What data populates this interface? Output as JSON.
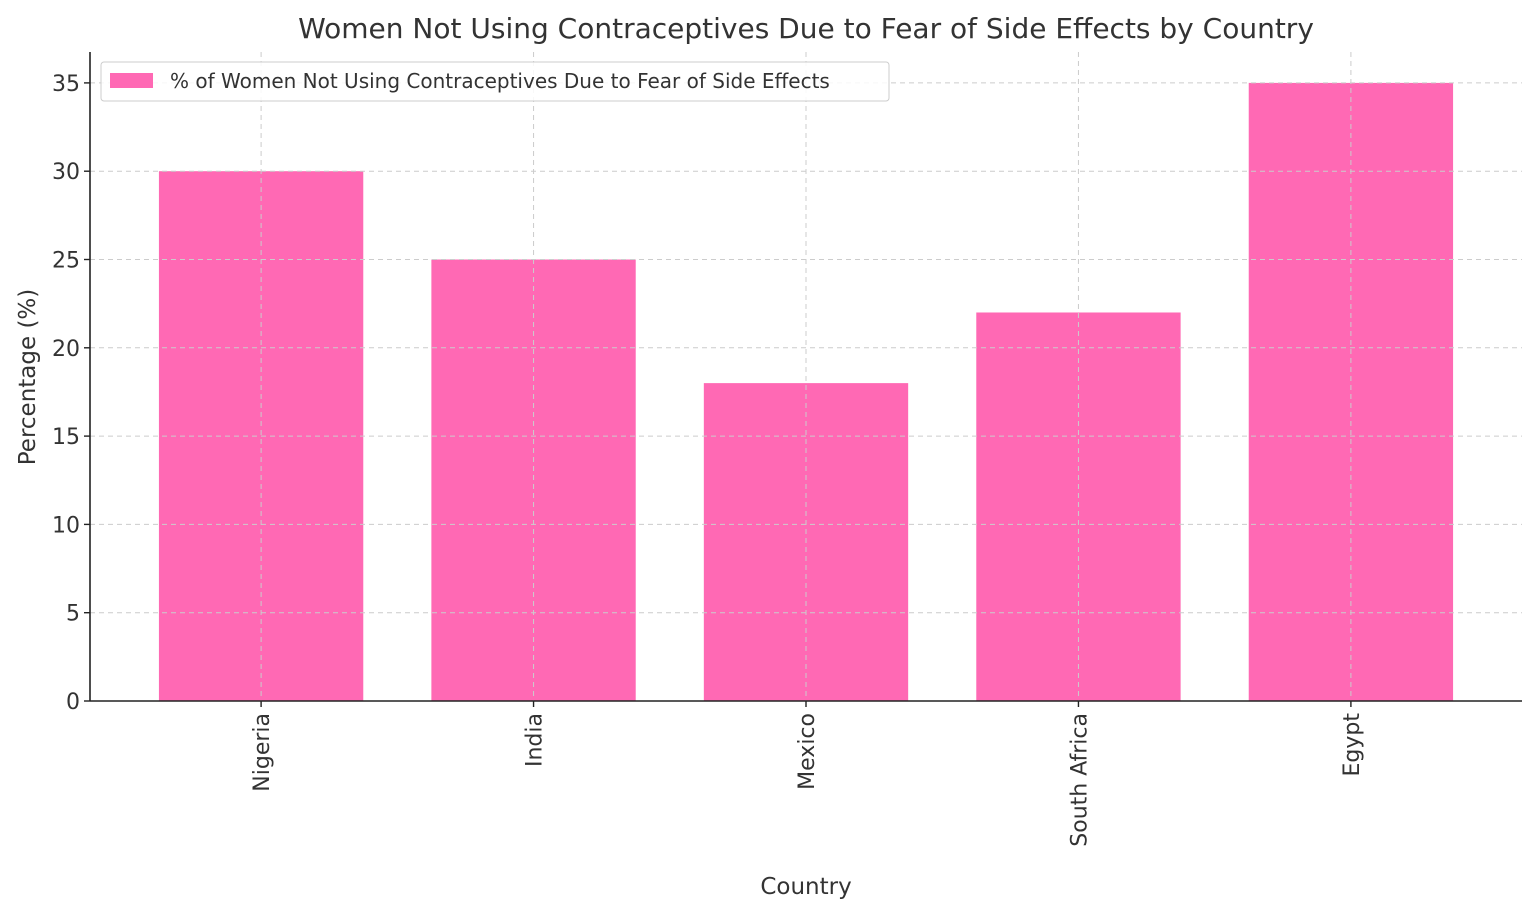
{
  "chart_data": {
    "type": "bar",
    "title": "Women Not Using Contraceptives Due to Fear of Side Effects by Country",
    "xlabel": "Country",
    "ylabel": "Percentage (%)",
    "categories": [
      "Nigeria",
      "India",
      "Mexico",
      "South Africa",
      "Egypt"
    ],
    "series": [
      {
        "name": "% of Women Not Using Contraceptives Due to Fear of Side Effects",
        "values": [
          30,
          25,
          18,
          22,
          35
        ],
        "color": "#FF69B4"
      }
    ],
    "ylim": [
      0,
      36.75
    ],
    "yticks": [
      0,
      5,
      10,
      15,
      20,
      25,
      30,
      35
    ],
    "grid": true,
    "legend": "upper-left",
    "x_tick_rotation": 90
  }
}
